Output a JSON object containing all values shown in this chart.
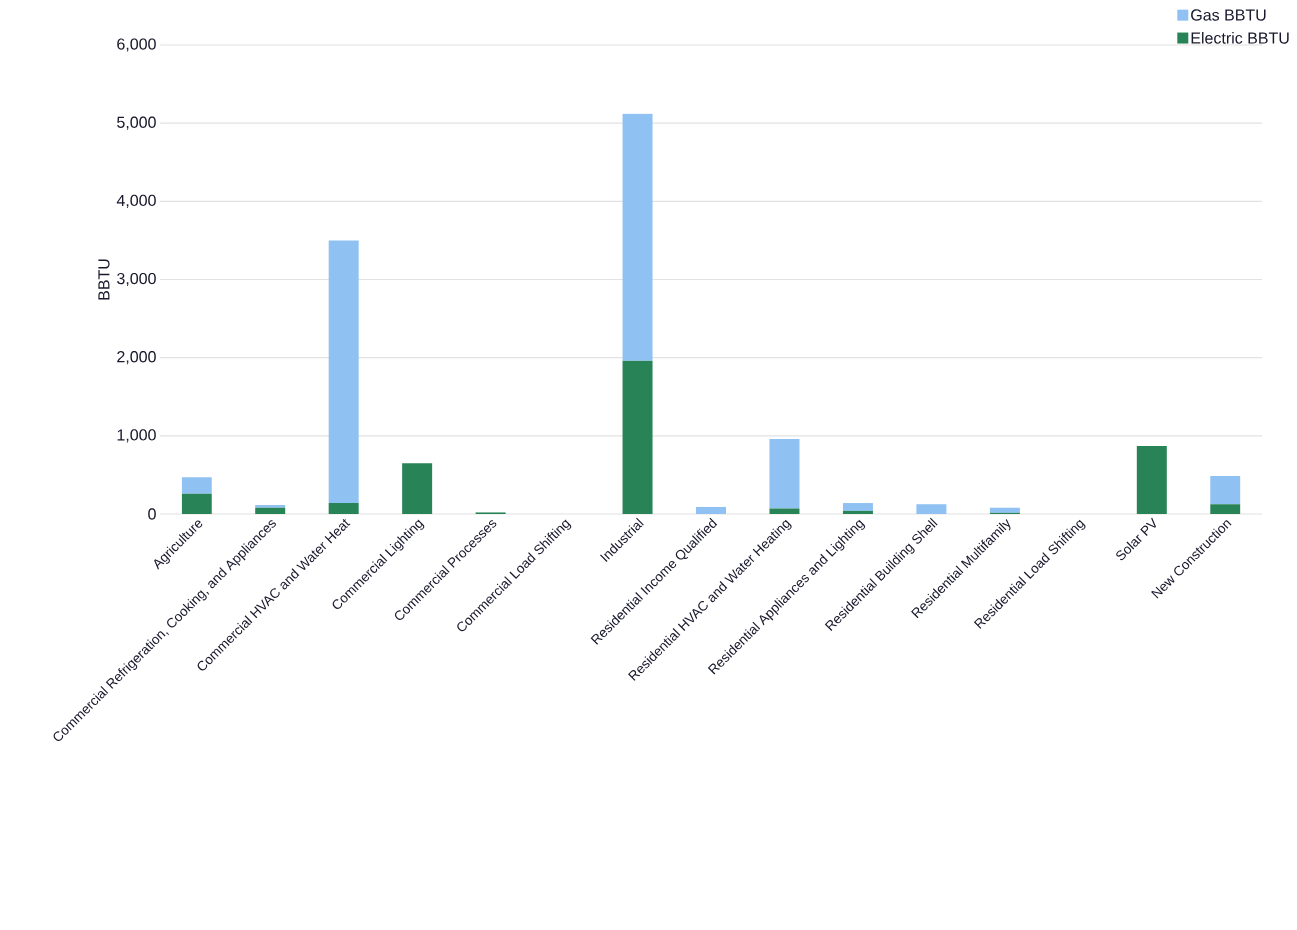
{
  "chart_data": {
    "type": "bar",
    "stacked": true,
    "ylabel": "BBTU",
    "categories": [
      "Agriculture",
      "Commercial Refrigeration, Cooking, and Appliances",
      "Commercial HVAC and Water Heat",
      "Commercial Lighting",
      "Commercial Processes",
      "Commercial Load Shifting",
      "Industrial",
      "Residential Income Qualified",
      "Residential HVAC and Water Heating",
      "Residential Appliances and Lighting",
      "Residential Building Shell",
      "Residential Multifamily",
      "Residential Load Shifting",
      "Solar PV",
      "New Construction"
    ],
    "series": [
      {
        "name": "Electric BBTU",
        "color": "#288456",
        "values": [
          260,
          80,
          140,
          650,
          20,
          0,
          1960,
          0,
          70,
          40,
          0,
          15,
          0,
          870,
          125
        ]
      },
      {
        "name": "Gas BBTU",
        "color": "#8fc1f2",
        "values": [
          210,
          35,
          3360,
          0,
          0,
          0,
          3160,
          90,
          890,
          100,
          125,
          65,
          0,
          0,
          360
        ]
      }
    ],
    "ylim": [
      0,
      6000
    ],
    "yticks": [
      {
        "value": 0,
        "label": "0"
      },
      {
        "value": 1000,
        "label": "1,000"
      },
      {
        "value": 2000,
        "label": "2,000"
      },
      {
        "value": 3000,
        "label": "3,000"
      },
      {
        "value": 4000,
        "label": "4,000"
      },
      {
        "value": 5000,
        "label": "5,000"
      },
      {
        "value": 6000,
        "label": "6,000"
      }
    ],
    "grid": "y",
    "legend": "top right"
  }
}
